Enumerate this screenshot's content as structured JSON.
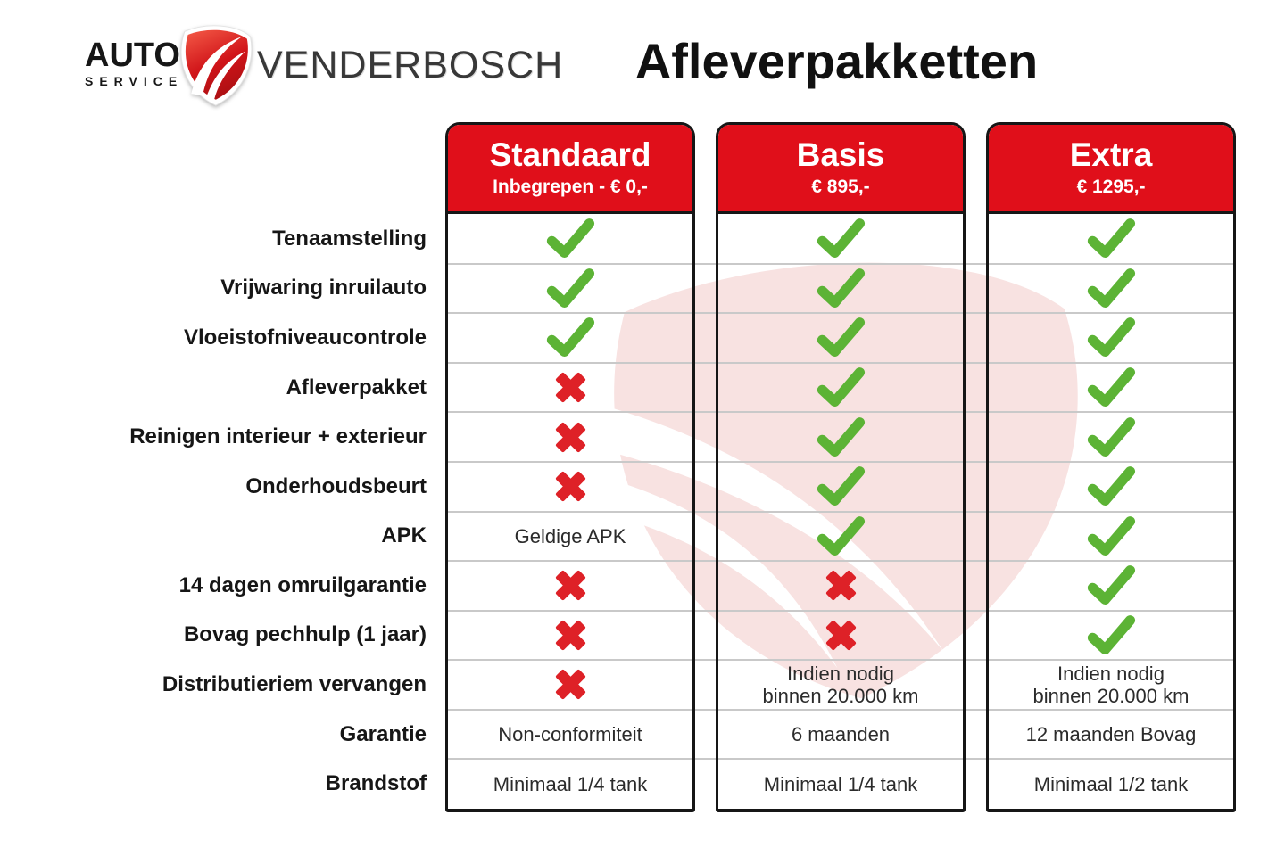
{
  "logo": {
    "word_top": "AUTO",
    "word_bottom": "SERVICE",
    "brand": "VENDERBOSCH"
  },
  "title": "Afleverpakketten",
  "chart_data": {
    "type": "table",
    "title": "Afleverpakketten",
    "columns": [
      "Standaard",
      "Basis",
      "Extra"
    ],
    "column_prices": [
      "Inbegrepen - € 0,-",
      "€ 895,-",
      "€ 1295,-"
    ],
    "rows": [
      {
        "label": "Tenaamstelling",
        "values": [
          true,
          true,
          true
        ]
      },
      {
        "label": "Vrijwaring inruilauto",
        "values": [
          true,
          true,
          true
        ]
      },
      {
        "label": "Vloeistofniveaucontrole",
        "values": [
          true,
          true,
          true
        ]
      },
      {
        "label": "Afleverpakket",
        "values": [
          false,
          true,
          true
        ]
      },
      {
        "label": "Reinigen interieur + exterieur",
        "values": [
          false,
          true,
          true
        ]
      },
      {
        "label": "Onderhoudsbeurt",
        "values": [
          false,
          true,
          true
        ]
      },
      {
        "label": "APK",
        "values": [
          "Geldige APK",
          true,
          true
        ]
      },
      {
        "label": "14 dagen omruilgarantie",
        "values": [
          false,
          false,
          true
        ]
      },
      {
        "label": "Bovag pechhulp (1 jaar)",
        "values": [
          false,
          false,
          true
        ]
      },
      {
        "label": "Distributieriem vervangen",
        "values": [
          false,
          "Indien nodig\nbinnen 20.000 km",
          "Indien nodig\nbinnen 20.000 km"
        ]
      },
      {
        "label": "Garantie",
        "values": [
          "Non-conformiteit",
          "6 maanden",
          "12 maanden Bovag"
        ]
      },
      {
        "label": "Brandstof",
        "values": [
          "Minimaal 1/4 tank",
          "Minimaal 1/4 tank",
          "Minimaal 1/2 tank"
        ]
      }
    ]
  },
  "colors": {
    "header_red": "#e00f1a",
    "check_green": "#5cb335",
    "cross_red": "#de2127",
    "border_black": "#161616",
    "divider_gray": "#c9c9c9",
    "watermark_pink": "#f8e2e1",
    "logo_red_light": "#ef5040",
    "logo_red_dark": "#a80f12"
  }
}
